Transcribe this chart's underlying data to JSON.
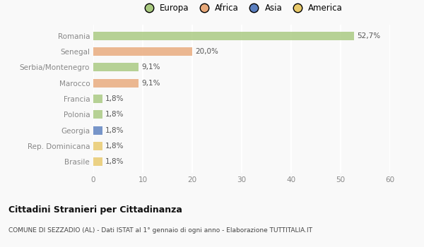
{
  "categories": [
    "Romania",
    "Senegal",
    "Serbia/Montenegro",
    "Marocco",
    "Francia",
    "Polonia",
    "Georgia",
    "Rep. Dominicana",
    "Brasile"
  ],
  "values": [
    52.7,
    20.0,
    9.1,
    9.1,
    1.8,
    1.8,
    1.8,
    1.8,
    1.8
  ],
  "labels": [
    "52,7%",
    "20,0%",
    "9,1%",
    "9,1%",
    "1,8%",
    "1,8%",
    "1,8%",
    "1,8%",
    "1,8%"
  ],
  "colors": [
    "#a8c97f",
    "#e8a97a",
    "#a8c97f",
    "#e8a97a",
    "#a8c97f",
    "#a8c97f",
    "#5b7fbf",
    "#e8c96a",
    "#e8c96a"
  ],
  "legend_labels": [
    "Europa",
    "Africa",
    "Asia",
    "America"
  ],
  "legend_colors": [
    "#a8c97f",
    "#e8a97a",
    "#5b7fbf",
    "#e8c96a"
  ],
  "xlim": [
    0,
    60
  ],
  "xticks": [
    0,
    10,
    20,
    30,
    40,
    50,
    60
  ],
  "title": "Cittadini Stranieri per Cittadinanza",
  "subtitle": "COMUNE DI SEZZADIO (AL) - Dati ISTAT al 1° gennaio di ogni anno - Elaborazione TUTTITALIA.IT",
  "bg_color": "#f9f9f9",
  "grid_color": "#ffffff",
  "bar_height": 0.55
}
